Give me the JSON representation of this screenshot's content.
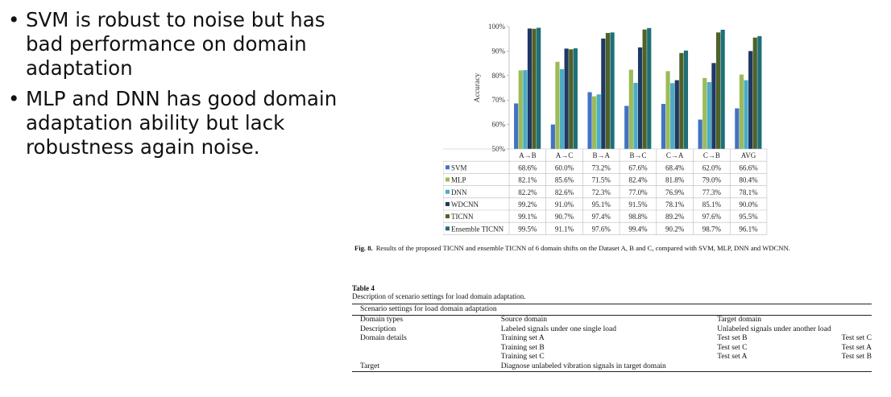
{
  "bullets": [
    "SVM is robust to noise but has bad performance on domain adaptation",
    "MLP and DNN has good domain adaptation ability but lack robustness again noise."
  ],
  "chart_data": {
    "type": "bar",
    "ylabel": "Accuracy",
    "ylim": [
      50,
      100
    ],
    "yticks": [
      "100%",
      "90%",
      "80%",
      "70%",
      "60%",
      "50%"
    ],
    "categories": [
      "A→B",
      "A→C",
      "B→A",
      "B→C",
      "C→A",
      "C→B",
      "AVG"
    ],
    "series": [
      {
        "name": "SVM",
        "color": "#4472c4",
        "values": [
          68.6,
          60.0,
          73.2,
          67.6,
          68.4,
          62.0,
          66.6
        ],
        "labels": [
          "68.6%",
          "60.0%",
          "73.2%",
          "67.6%",
          "68.4%",
          "62.0%",
          "66.6%"
        ]
      },
      {
        "name": "MLP",
        "color": "#9bbb59",
        "values": [
          82.1,
          85.6,
          71.5,
          82.4,
          81.8,
          79.0,
          80.4
        ],
        "labels": [
          "82.1%",
          "85.6%",
          "71.5%",
          "82.4%",
          "81.8%",
          "79.0%",
          "80.4%"
        ]
      },
      {
        "name": "DNN",
        "color": "#4bacc6",
        "values": [
          82.2,
          82.6,
          72.3,
          77.0,
          76.9,
          77.3,
          78.1
        ],
        "labels": [
          "82.2%",
          "82.6%",
          "72.3%",
          "77.0%",
          "76.9%",
          "77.3%",
          "78.1%"
        ]
      },
      {
        "name": "WDCNN",
        "color": "#1f3864",
        "values": [
          99.2,
          91.0,
          95.1,
          91.5,
          78.1,
          85.1,
          90.0
        ],
        "labels": [
          "99.2%",
          "91.0%",
          "95.1%",
          "91.5%",
          "78.1%",
          "85.1%",
          "90.0%"
        ]
      },
      {
        "name": "TICNN",
        "color": "#4f6228",
        "values": [
          99.1,
          90.7,
          97.4,
          98.8,
          89.2,
          97.6,
          95.5
        ],
        "labels": [
          "99.1%",
          "90.7%",
          "97.4%",
          "98.8%",
          "89.2%",
          "97.6%",
          "95.5%"
        ]
      },
      {
        "name": "Ensemble TICNN",
        "color": "#1f6f78",
        "values": [
          99.5,
          91.1,
          97.6,
          99.4,
          90.2,
          98.7,
          96.1
        ],
        "labels": [
          "99.5%",
          "91.1%",
          "97.6%",
          "99.4%",
          "90.2%",
          "98.7%",
          "96.1%"
        ]
      }
    ],
    "caption_label": "Fig. 8.",
    "caption": "Results of the proposed TICNN and ensemble TICNN of 6 domain shifts on the Dataset A, B and C, compared with SVM, MLP, DNN and WDCNN."
  },
  "table4": {
    "title": "Table 4",
    "description": "Description of scenario settings for load domain adaptation.",
    "header": "Scenario settings for load domain adaptation",
    "rows": [
      [
        "Domain types",
        "Source domain",
        "Target domain",
        ""
      ],
      [
        "Description",
        "Labeled signals under one single load",
        "Unlabeled signals under another load",
        ""
      ],
      [
        "Domain details",
        "Training set A",
        "Test set B",
        "Test set C"
      ],
      [
        "",
        "Training set B",
        "Test set C",
        "Test set A"
      ],
      [
        "",
        "Training set C",
        "Test set A",
        "Test set B"
      ],
      [
        "Target",
        "Diagnose unlabeled vibration signals in target domain",
        "",
        ""
      ]
    ]
  }
}
